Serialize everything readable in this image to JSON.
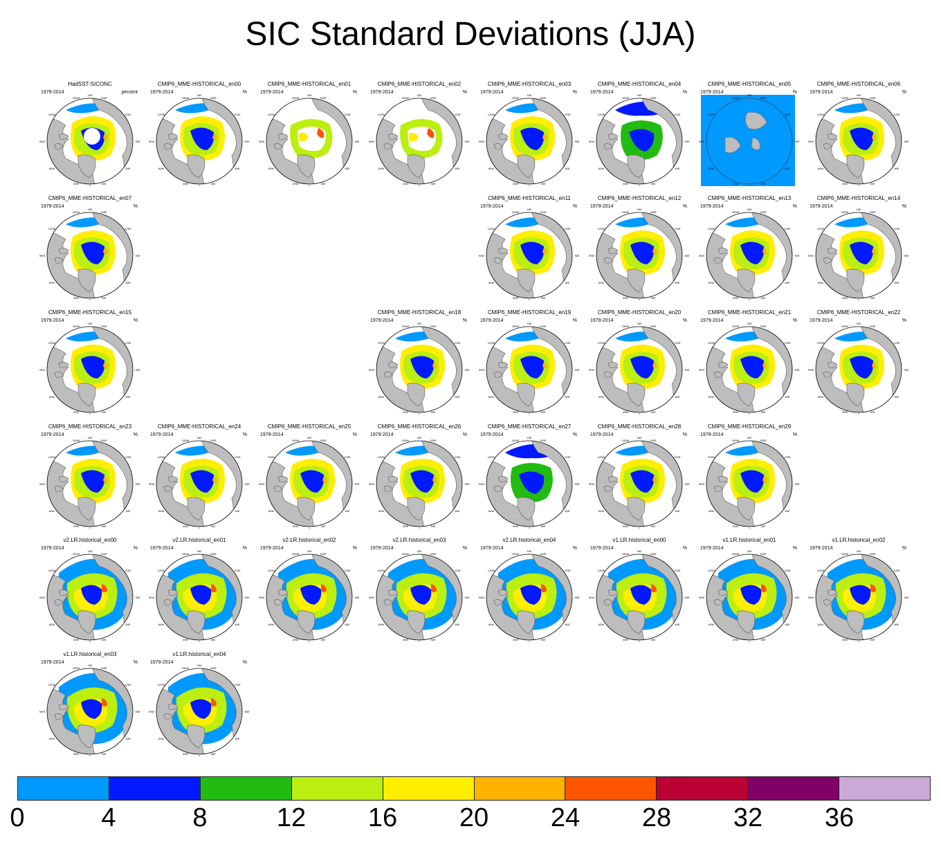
{
  "title": "SIC Standard Deviations (JJA)",
  "period": "1979-2014",
  "units_default": "%",
  "map_labels": {
    "lon": [
      "180",
      "150W",
      "150E",
      "120W",
      "120E",
      "90W",
      "90E",
      "60W",
      "60E",
      "30W",
      "30E",
      "0"
    ]
  },
  "colors": {
    "land": "#bdbdbd",
    "ocean": "#ffffff",
    "coast": "#5a5a5a",
    "levels": [
      "#0099ff",
      "#0019ff",
      "#22bb11",
      "#bbee11",
      "#ffee00",
      "#ffb300",
      "#ff5500",
      "#bb0033",
      "#800066",
      "#c9a9d6"
    ]
  },
  "colorbar": {
    "ticks": [
      "0",
      "4",
      "8",
      "12",
      "16",
      "20",
      "24",
      "28",
      "32",
      "36"
    ]
  },
  "panels": [
    {
      "name": "HadSST-SICONC",
      "units": "percent",
      "row": 0,
      "col": 0,
      "style": "obs"
    },
    {
      "name": "CMIP6_MME-HISTORICAL_en00",
      "row": 0,
      "col": 1,
      "style": "a"
    },
    {
      "name": "CMIP6_MME-HISTORICAL_en01",
      "row": 0,
      "col": 2,
      "style": "c"
    },
    {
      "name": "CMIP6_MME-HISTORICAL_en02",
      "row": 0,
      "col": 3,
      "style": "c"
    },
    {
      "name": "CMIP6_MME-HISTORICAL_en03",
      "row": 0,
      "col": 4,
      "style": "a"
    },
    {
      "name": "CMIP6_MME-HISTORICAL_en04",
      "row": 0,
      "col": 5,
      "style": "d"
    },
    {
      "name": "CMIP6_MME-HISTORICAL_en05",
      "row": 0,
      "col": 6,
      "style": "box"
    },
    {
      "name": "CMIP6_MME-HISTORICAL_en06",
      "row": 0,
      "col": 7,
      "style": "a"
    },
    {
      "name": "CMIP6_MME-HISTORICAL_en07",
      "row": 1,
      "col": 0,
      "style": "a"
    },
    {
      "name": "CMIP6_MME-HISTORICAL_en11",
      "row": 1,
      "col": 4,
      "style": "a"
    },
    {
      "name": "CMIP6_MME-HISTORICAL_en12",
      "row": 1,
      "col": 5,
      "style": "a"
    },
    {
      "name": "CMIP6_MME-HISTORICAL_en13",
      "row": 1,
      "col": 6,
      "style": "a"
    },
    {
      "name": "CMIP6_MME-HISTORICAL_en14",
      "row": 1,
      "col": 7,
      "style": "a"
    },
    {
      "name": "CMIP6_MME-HISTORICAL_en15",
      "row": 2,
      "col": 0,
      "style": "a"
    },
    {
      "name": "CMIP6_MME-HISTORICAL_en18",
      "row": 2,
      "col": 3,
      "style": "a"
    },
    {
      "name": "CMIP6_MME-HISTORICAL_en19",
      "row": 2,
      "col": 4,
      "style": "a"
    },
    {
      "name": "CMIP6_MME-HISTORICAL_en20",
      "row": 2,
      "col": 5,
      "style": "a"
    },
    {
      "name": "CMIP6_MME-HISTORICAL_en21",
      "row": 2,
      "col": 6,
      "style": "a"
    },
    {
      "name": "CMIP6_MME-HISTORICAL_en22",
      "row": 2,
      "col": 7,
      "style": "a"
    },
    {
      "name": "CMIP6_MME-HISTORICAL_en23",
      "row": 3,
      "col": 0,
      "style": "a"
    },
    {
      "name": "CMIP6_MME-HISTORICAL_en24",
      "row": 3,
      "col": 1,
      "style": "a"
    },
    {
      "name": "CMIP6_MME-HISTORICAL_en25",
      "row": 3,
      "col": 2,
      "style": "a"
    },
    {
      "name": "CMIP6_MME-HISTORICAL_en26",
      "row": 3,
      "col": 3,
      "style": "a"
    },
    {
      "name": "CMIP6_MME-HISTORICAL_en27",
      "row": 3,
      "col": 4,
      "style": "d"
    },
    {
      "name": "CMIP6_MME-HISTORICAL_en28",
      "row": 3,
      "col": 5,
      "style": "a"
    },
    {
      "name": "CMIP6_MME-HISTORICAL_en29",
      "row": 3,
      "col": 6,
      "style": "a"
    },
    {
      "name": "v2.LR.historical_en00",
      "row": 4,
      "col": 0,
      "style": "b"
    },
    {
      "name": "v2.LR.historical_en01",
      "row": 4,
      "col": 1,
      "style": "b"
    },
    {
      "name": "v2.LR.historical_en02",
      "row": 4,
      "col": 2,
      "style": "b"
    },
    {
      "name": "v2.LR.historical_en03",
      "row": 4,
      "col": 3,
      "style": "b"
    },
    {
      "name": "v2.LR.historical_en04",
      "row": 4,
      "col": 4,
      "style": "b"
    },
    {
      "name": "v1.LR.historical_en00",
      "row": 4,
      "col": 5,
      "style": "b"
    },
    {
      "name": "v1.LR.historical_en01",
      "row": 4,
      "col": 6,
      "style": "b"
    },
    {
      "name": "v1.LR.historical_en02",
      "row": 4,
      "col": 7,
      "style": "b"
    },
    {
      "name": "v1.LR.historical_en03",
      "row": 5,
      "col": 0,
      "style": "b"
    },
    {
      "name": "v1.LR.historical_en04",
      "row": 5,
      "col": 1,
      "style": "b"
    }
  ]
}
